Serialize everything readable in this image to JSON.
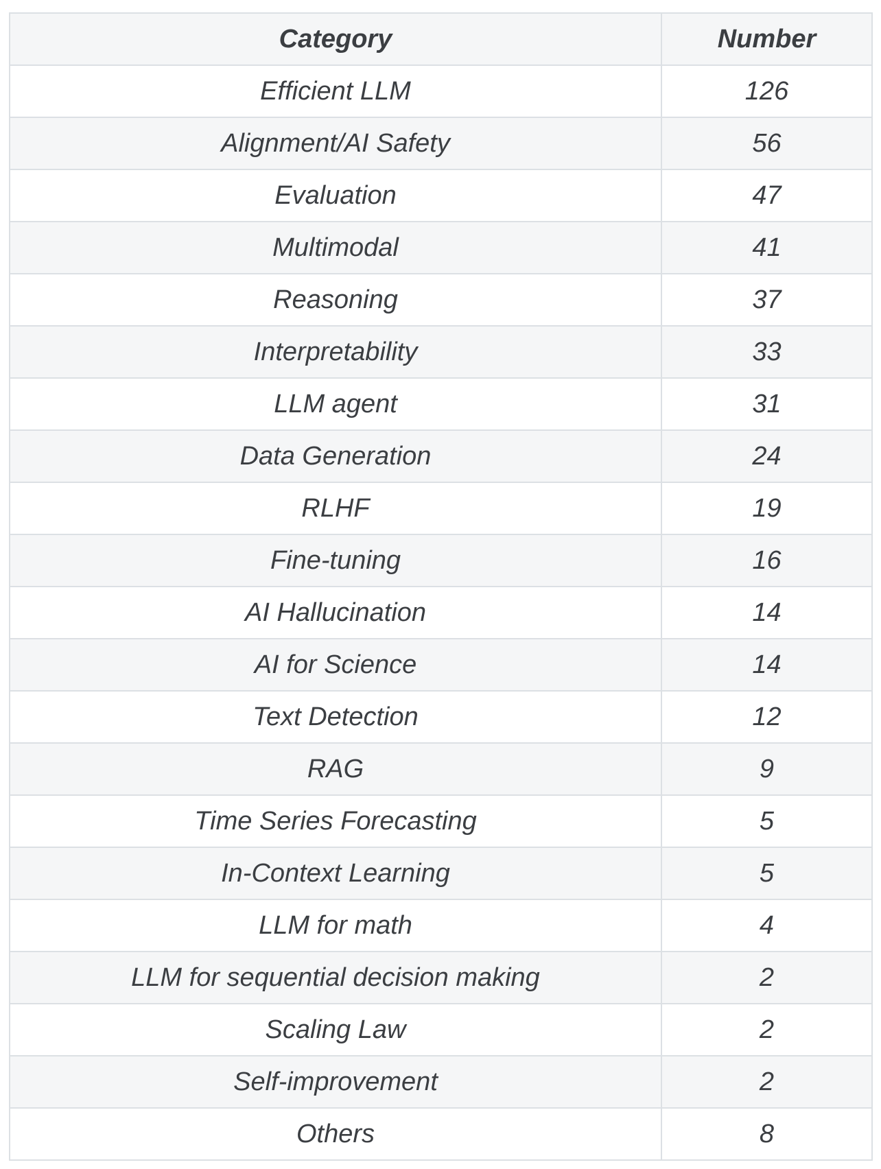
{
  "table": {
    "columns": {
      "category": "Category",
      "number": "Number"
    },
    "rows": [
      {
        "category": "Efficient LLM",
        "number": "126"
      },
      {
        "category": "Alignment/AI Safety",
        "number": "56"
      },
      {
        "category": "Evaluation",
        "number": "47"
      },
      {
        "category": "Multimodal",
        "number": "41"
      },
      {
        "category": "Reasoning",
        "number": "37"
      },
      {
        "category": "Interpretability",
        "number": "33"
      },
      {
        "category": "LLM agent",
        "number": "31"
      },
      {
        "category": "Data Generation",
        "number": "24"
      },
      {
        "category": "RLHF",
        "number": "19"
      },
      {
        "category": "Fine-tuning",
        "number": "16"
      },
      {
        "category": "AI Hallucination",
        "number": "14"
      },
      {
        "category": "AI for Science",
        "number": "14"
      },
      {
        "category": "Text Detection",
        "number": "12"
      },
      {
        "category": "RAG",
        "number": "9"
      },
      {
        "category": "Time Series Forecasting",
        "number": "5"
      },
      {
        "category": "In-Context Learning",
        "number": "5"
      },
      {
        "category": "LLM for math",
        "number": "4"
      },
      {
        "category": "LLM for sequential decision making",
        "number": "2"
      },
      {
        "category": "Scaling Law",
        "number": "2"
      },
      {
        "category": "Self-improvement",
        "number": "2"
      },
      {
        "category": "Others",
        "number": "8"
      }
    ]
  },
  "chart_data": {
    "type": "table",
    "title": "",
    "columns": [
      "Category",
      "Number"
    ],
    "categories": [
      "Efficient LLM",
      "Alignment/AI Safety",
      "Evaluation",
      "Multimodal",
      "Reasoning",
      "Interpretability",
      "LLM agent",
      "Data Generation",
      "RLHF",
      "Fine-tuning",
      "AI Hallucination",
      "AI for Science",
      "Text Detection",
      "RAG",
      "Time Series Forecasting",
      "In-Context Learning",
      "LLM for math",
      "LLM for sequential decision making",
      "Scaling Law",
      "Self-improvement",
      "Others"
    ],
    "values": [
      126,
      56,
      47,
      41,
      37,
      33,
      31,
      24,
      19,
      16,
      14,
      14,
      12,
      9,
      5,
      5,
      4,
      2,
      2,
      2,
      8
    ]
  },
  "colors": {
    "background": "#ffffff",
    "zebra_gray": "#f5f6f7",
    "border": "#dce0e4",
    "text": "#3b3e42"
  }
}
